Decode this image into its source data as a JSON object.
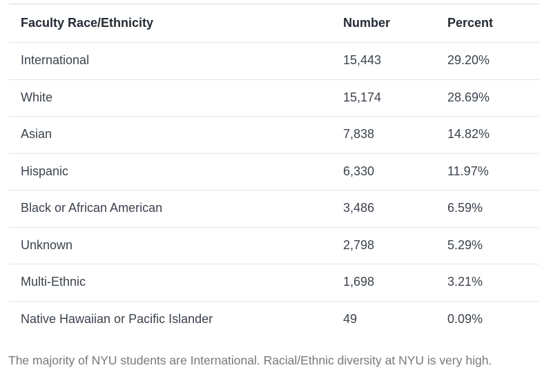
{
  "table": {
    "columns": [
      "Faculty Race/Ethnicity",
      "Number",
      "Percent"
    ],
    "rows": [
      {
        "label": "International",
        "number": "15,443",
        "percent": "29.20%"
      },
      {
        "label": "White",
        "number": "15,174",
        "percent": "28.69%"
      },
      {
        "label": "Asian",
        "number": "7,838",
        "percent": "14.82%"
      },
      {
        "label": "Hispanic",
        "number": "6,330",
        "percent": "11.97%"
      },
      {
        "label": "Black or African American",
        "number": "3,486",
        "percent": "6.59%"
      },
      {
        "label": "Unknown",
        "number": "2,798",
        "percent": "5.29%"
      },
      {
        "label": "Multi-Ethnic",
        "number": "1,698",
        "percent": "3.21%"
      },
      {
        "label": "Native Hawaiian or Pacific Islander",
        "number": "49",
        "percent": "0.09%"
      }
    ]
  },
  "caption": "The majority of NYU students are International. Racial/Ethnic diversity at NYU is very high.",
  "colors": {
    "header_text": "#242b33",
    "body_text": "#3c434d",
    "caption_text": "#77787a",
    "divider": "#e4e4e4",
    "top_border": "#eaeaea",
    "background": "#ffffff"
  },
  "chart_data": {
    "type": "table",
    "title": "Faculty Race/Ethnicity",
    "columns": [
      "Faculty Race/Ethnicity",
      "Number",
      "Percent"
    ],
    "categories": [
      "International",
      "White",
      "Asian",
      "Hispanic",
      "Black or African American",
      "Unknown",
      "Multi-Ethnic",
      "Native Hawaiian or Pacific Islander"
    ],
    "series": [
      {
        "name": "Number",
        "values": [
          15443,
          15174,
          7838,
          6330,
          3486,
          2798,
          1698,
          49
        ]
      },
      {
        "name": "Percent",
        "values": [
          29.2,
          28.69,
          14.82,
          11.97,
          6.59,
          5.29,
          3.21,
          0.09
        ]
      }
    ],
    "annotations": [
      "The majority of NYU students are International. Racial/Ethnic diversity at NYU is very high."
    ]
  }
}
